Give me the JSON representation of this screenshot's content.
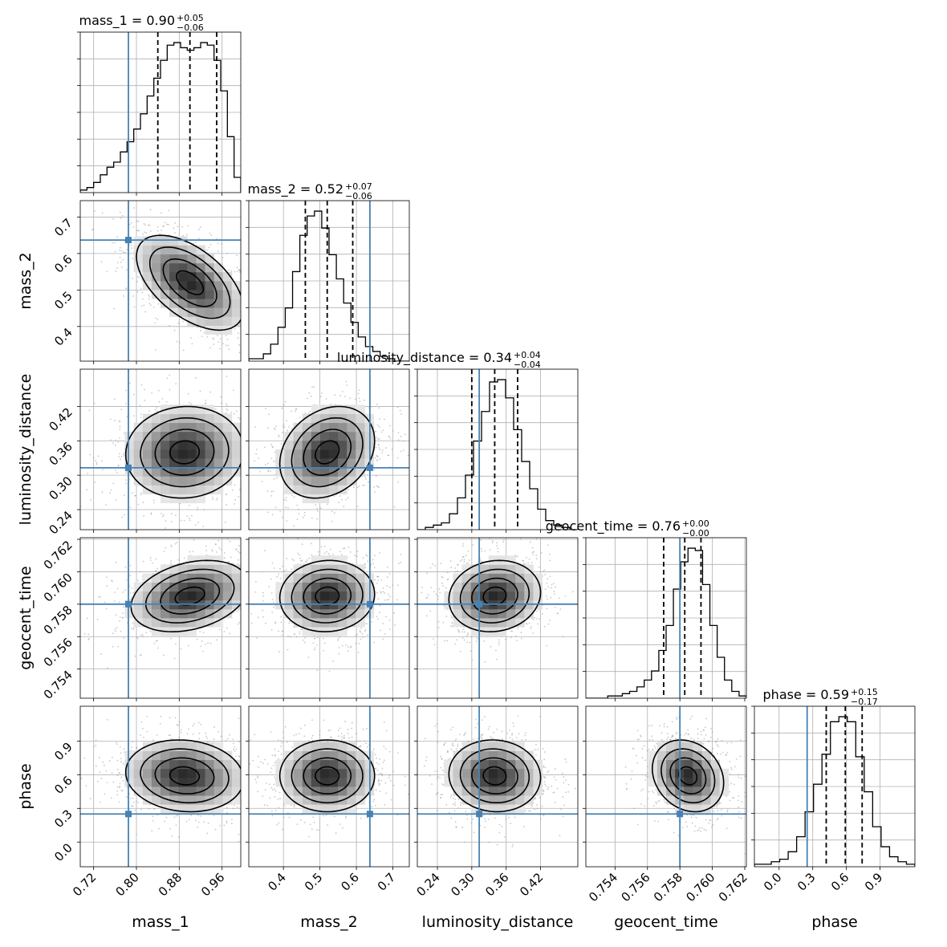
{
  "chart_data": {
    "type": "corner",
    "params": [
      "mass_1",
      "mass_2",
      "luminosity_distance",
      "geocent_time",
      "phase"
    ],
    "axis_labels": [
      "mass_1",
      "mass_2",
      "luminosity_distance",
      "geocent_time",
      "phase"
    ],
    "ranges": [
      [
        0.695,
        0.995
      ],
      [
        0.305,
        0.745
      ],
      [
        0.205,
        0.485
      ],
      [
        0.7522,
        0.7621
      ],
      [
        -0.22,
        1.21
      ]
    ],
    "ticks": [
      [
        0.72,
        0.8,
        0.88,
        0.96
      ],
      [
        0.4,
        0.5,
        0.6,
        0.7
      ],
      [
        0.24,
        0.3,
        0.36,
        0.42
      ],
      [
        0.754,
        0.756,
        0.758,
        0.76,
        0.762
      ],
      [
        0.0,
        0.3,
        0.6,
        0.9
      ]
    ],
    "tick_labels": [
      [
        "0.72",
        "0.80",
        "0.88",
        "0.96"
      ],
      [
        "0.4",
        "0.5",
        "0.6",
        "0.7"
      ],
      [
        "0.24",
        "0.30",
        "0.36",
        "0.42"
      ],
      [
        "0.754",
        "0.756",
        "0.758",
        "0.760",
        "0.762"
      ],
      [
        "0.0",
        "0.3",
        "0.6",
        "0.9"
      ]
    ],
    "truths": [
      0.785,
      0.637,
      0.313,
      0.758,
      0.25
    ],
    "truth_color": "#4682b4",
    "titles": [
      {
        "main": "mass_1 = 0.90",
        "plus": "+0.05",
        "minus": "−0.06"
      },
      {
        "main": "mass_2 = 0.52",
        "plus": "+0.07",
        "minus": "−0.06"
      },
      {
        "main": "luminosity_distance = 0.34",
        "plus": "+0.04",
        "minus": "−0.04"
      },
      {
        "main": "geocent_time = 0.76",
        "plus": "+0.00",
        "minus": "−0.00"
      },
      {
        "main": "phase = 0.59",
        "plus": "+0.15",
        "minus": "−0.17"
      }
    ],
    "quantiles": [
      [
        0.84,
        0.9,
        0.95
      ],
      [
        0.46,
        0.52,
        0.59
      ],
      [
        0.3,
        0.34,
        0.38
      ],
      [
        0.757,
        0.7583,
        0.7593
      ],
      [
        0.42,
        0.59,
        0.74
      ]
    ],
    "histograms": [
      {
        "edges_range": [
          0.695,
          0.995
        ],
        "counts": [
          1,
          2,
          4,
          7,
          10,
          12,
          16,
          20,
          25,
          31,
          38,
          45,
          52,
          58,
          59,
          57,
          56,
          57,
          59,
          58,
          52,
          40,
          22,
          6
        ]
      },
      {
        "edges_range": [
          0.305,
          0.745
        ],
        "counts": [
          1,
          1,
          3,
          7,
          14,
          22,
          37,
          52,
          60,
          62,
          55,
          44,
          34,
          24,
          16,
          10,
          6,
          4,
          2,
          1,
          0,
          0
        ]
      },
      {
        "edges_range": [
          0.205,
          0.485
        ],
        "counts": [
          0,
          1,
          2,
          3,
          7,
          14,
          24,
          39,
          52,
          65,
          66,
          58,
          44,
          30,
          18,
          9,
          4,
          2,
          1,
          0
        ]
      },
      {
        "edges_range": [
          0.7522,
          0.7621
        ],
        "counts": [
          0,
          0,
          0,
          1,
          1,
          2,
          3,
          5,
          8,
          12,
          21,
          32,
          48,
          60,
          66,
          65,
          50,
          32,
          18,
          8,
          3,
          1
        ]
      },
      {
        "edges_range": [
          -0.22,
          1.21
        ],
        "counts": [
          1,
          1,
          2,
          3,
          6,
          12,
          22,
          33,
          45,
          58,
          60,
          58,
          44,
          30,
          16,
          8,
          4,
          2,
          1
        ]
      }
    ],
    "contours": {
      "mass_2|mass_1": {
        "center": [
          0.9,
          0.52
        ],
        "sigma": [
          0.05,
          0.065
        ],
        "rho": -0.55
      },
      "luminosity_distance|mass_1": {
        "center": [
          0.89,
          0.34
        ],
        "sigma": [
          0.055,
          0.04
        ],
        "rho": 0.05
      },
      "luminosity_distance|mass_2": {
        "center": [
          0.52,
          0.34
        ],
        "sigma": [
          0.065,
          0.04
        ],
        "rho": 0.25
      },
      "geocent_time|mass_1": {
        "center": [
          0.9,
          0.7585
        ],
        "sigma": [
          0.055,
          0.0011
        ],
        "rho": 0.3
      },
      "geocent_time|mass_2": {
        "center": [
          0.52,
          0.7585
        ],
        "sigma": [
          0.065,
          0.0011
        ],
        "rho": 0.05
      },
      "geocent_time|luminosity_distance": {
        "center": [
          0.34,
          0.7585
        ],
        "sigma": [
          0.04,
          0.0011
        ],
        "rho": 0.1
      },
      "phase|mass_1": {
        "center": [
          0.89,
          0.59
        ],
        "sigma": [
          0.055,
          0.16
        ],
        "rho": -0.1
      },
      "phase|mass_2": {
        "center": [
          0.52,
          0.59
        ],
        "sigma": [
          0.065,
          0.16
        ],
        "rho": 0.0
      },
      "phase|luminosity_distance": {
        "center": [
          0.34,
          0.59
        ],
        "sigma": [
          0.04,
          0.16
        ],
        "rho": -0.05
      },
      "phase|geocent_time": {
        "center": [
          0.7585,
          0.59
        ],
        "sigma": [
          0.0011,
          0.16
        ],
        "rho": -0.2
      }
    },
    "contour_levels": [
      0.5,
      1.0,
      1.5,
      2.0
    ],
    "grid": true
  }
}
